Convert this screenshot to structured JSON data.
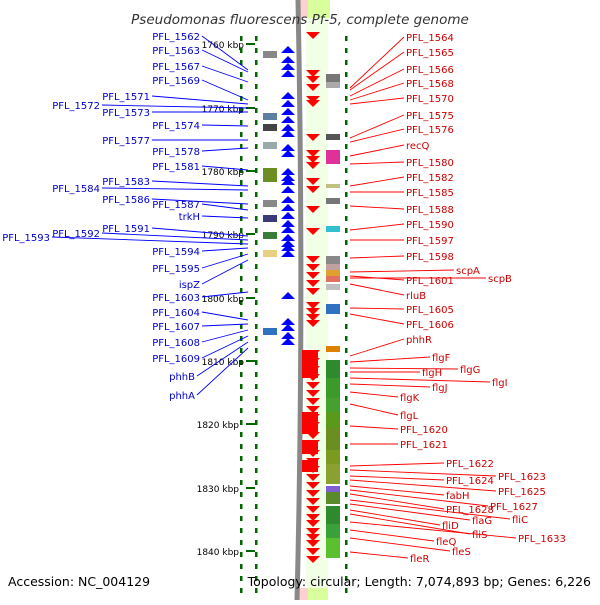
{
  "title": "Pseudomonas fluorescens Pf-5, complete genome",
  "footer": {
    "accession": "Accession: NC_004129",
    "topology": "Topology: circular; Length: 7,074,893 bp; Genes: 6,226"
  },
  "scale_labels": [
    "1760 kbp",
    "1770 kbp",
    "1780 kbp",
    "1790 kbp",
    "1800 kbp",
    "1810 kbp",
    "1820 kbp",
    "1830 kbp",
    "1840 kbp"
  ],
  "left_genes": [
    "PFL_1562",
    "PFL_1563",
    "PFL_1567",
    "PFL_1569",
    "PFL_1571",
    "PFL_1572",
    "PFL_1573",
    "PFL_1574",
    "PFL_1577",
    "PFL_1578",
    "PFL_1581",
    "PFL_1583",
    "PFL_1584",
    "PFL_1586",
    "PFL_1587",
    "trkH",
    "PFL_1591",
    "PFL_1592",
    "PFL_1593",
    "PFL_1594",
    "PFL_1595",
    "ispZ",
    "PFL_1603",
    "PFL_1604",
    "PFL_1607",
    "PFL_1608",
    "PFL_1609",
    "phhB",
    "phhA"
  ],
  "right_genes": [
    "PFL_1564",
    "PFL_1565",
    "PFL_1566",
    "PFL_1568",
    "PFL_1570",
    "PFL_1575",
    "PFL_1576",
    "recQ",
    "PFL_1580",
    "PFL_1582",
    "PFL_1585",
    "PFL_1588",
    "PFL_1590",
    "PFL_1597",
    "PFL_1598",
    "scpA",
    "PFL_1601",
    "scpB",
    "rluB",
    "PFL_1605",
    "PFL_1606",
    "phhR",
    "flgF",
    "flgG",
    "flgH",
    "flgI",
    "flgJ",
    "flgK",
    "flgL",
    "PFL_1620",
    "PFL_1621",
    "PFL_1622",
    "PFL_1623",
    "PFL_1624",
    "PFL_1625",
    "fabH",
    "PFL_1627",
    "PFL_1628",
    "fliC",
    "flaG",
    "fliD",
    "fliS",
    "PFL_1633",
    "fleQ",
    "fleS",
    "fleR"
  ],
  "colors": {
    "forward_strand": "#0000ff",
    "reverse_strand": "#ff0000",
    "backbone": "#888888",
    "scale_ticks": "#006600"
  }
}
